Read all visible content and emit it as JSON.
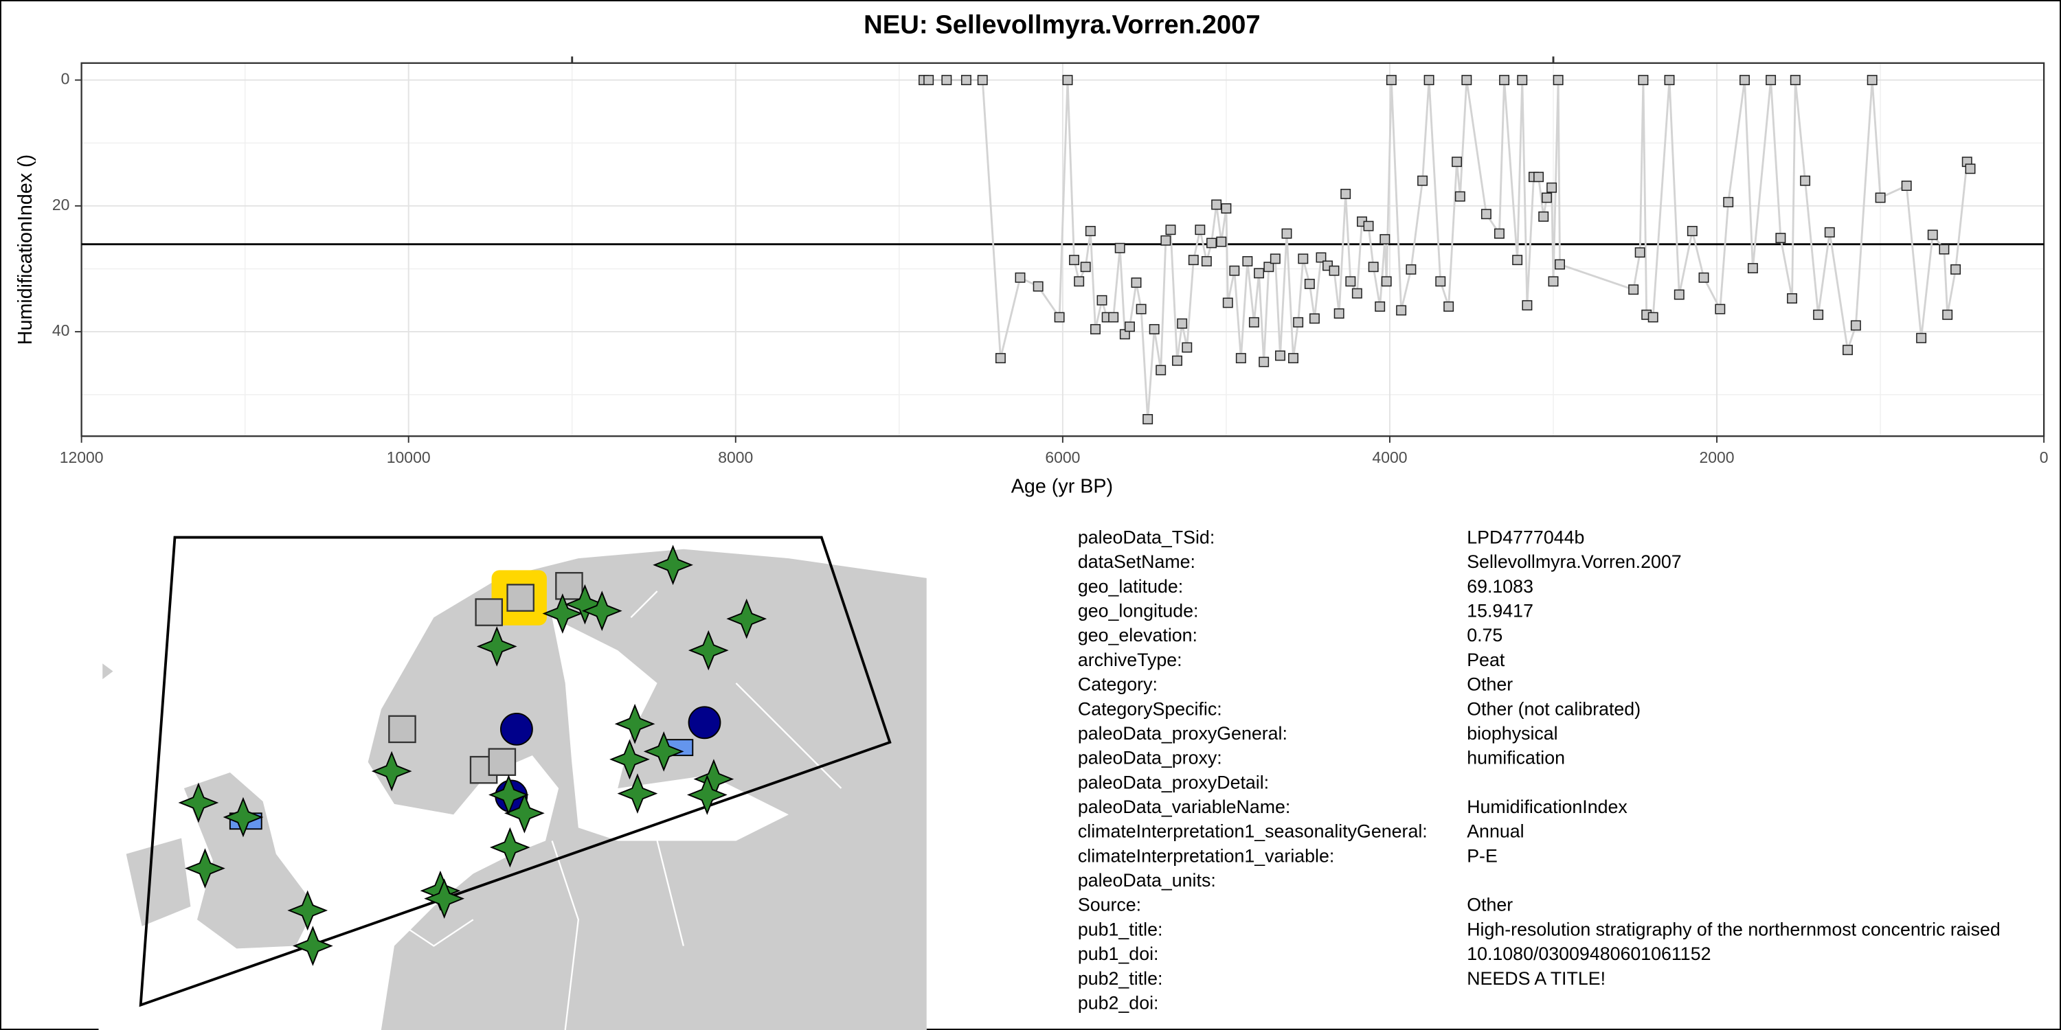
{
  "chart_data": {
    "type": "line",
    "title": "NEU: Sellevollmyra.Vorren.2007",
    "xlabel": "Age (yr BP)",
    "ylabel": "HumidificationIndex ()",
    "x": [
      6850,
      6820,
      6710,
      6590,
      6490,
      6380,
      6260,
      6150,
      6020,
      5970,
      5930,
      5900,
      5860,
      5830,
      5800,
      5760,
      5730,
      5690,
      5650,
      5620,
      5590,
      5550,
      5520,
      5480,
      5440,
      5400,
      5370,
      5340,
      5300,
      5270,
      5240,
      5200,
      5160,
      5120,
      5090,
      5060,
      5030,
      5000,
      4990,
      4950,
      4910,
      4870,
      4830,
      4800,
      4770,
      4740,
      4700,
      4670,
      4630,
      4590,
      4560,
      4530,
      4490,
      4460,
      4420,
      4380,
      4340,
      4310,
      4270,
      4240,
      4200,
      4170,
      4130,
      4100,
      4060,
      4030,
      4020,
      3990,
      3930,
      3870,
      3800,
      3760,
      3690,
      3640,
      3590,
      3570,
      3530,
      3410,
      3330,
      3300,
      3220,
      3190,
      3160,
      3120,
      3090,
      3060,
      3040,
      3010,
      3000,
      2970,
      2960,
      2510,
      2470,
      2450,
      2430,
      2390,
      2290,
      2230,
      2150,
      2080,
      1980,
      1930,
      1830,
      1780,
      1670,
      1610,
      1540,
      1520,
      1460,
      1380,
      1310,
      1200,
      1150,
      1050,
      1000,
      840,
      750,
      680,
      610,
      590,
      540,
      470,
      450
    ],
    "values": [
      0,
      0,
      0,
      0,
      0,
      44.2,
      31.4,
      32.8,
      37.7,
      0,
      28.6,
      32,
      29.7,
      24,
      39.6,
      35,
      37.7,
      37.7,
      26.7,
      40.4,
      39.2,
      32.2,
      36.4,
      53.9,
      39.6,
      46.1,
      25.5,
      23.8,
      44.6,
      38.7,
      42.5,
      28.6,
      23.8,
      28.8,
      25.9,
      19.8,
      25.7,
      20.4,
      35.4,
      30.3,
      44.2,
      28.8,
      38.5,
      30.7,
      44.8,
      29.7,
      28.4,
      43.8,
      24.4,
      44.2,
      38.5,
      28.4,
      32.4,
      37.9,
      28.2,
      29.5,
      30.3,
      37.1,
      18.1,
      32,
      33.9,
      22.5,
      23.2,
      29.7,
      36,
      25.3,
      32,
      0,
      36.6,
      30.1,
      16,
      0,
      32,
      36,
      13,
      18.5,
      0,
      21.3,
      24.4,
      0,
      28.6,
      0,
      35.8,
      15.4,
      15.4,
      21.7,
      18.7,
      17.1,
      32,
      0,
      29.3,
      33.3,
      27.4,
      0,
      37.3,
      37.7,
      0,
      34.1,
      24,
      31.4,
      36.4,
      19.4,
      0,
      29.9,
      0,
      25.1,
      34.7,
      0,
      16,
      37.3,
      24.2,
      42.9,
      39,
      0,
      18.7,
      16.8,
      41,
      24.6,
      26.9,
      37.3,
      30.1,
      13,
      14.1
    ],
    "color": "#d3d3d3",
    "marker_color": "#c8c8c8",
    "xlim": [
      12000,
      0
    ],
    "xticks": [
      0,
      2000,
      4000,
      6000,
      8000,
      10000,
      12000
    ],
    "xminor": [
      1000,
      3000,
      5000,
      7000,
      9000,
      11000
    ],
    "x2ticks": [
      9000,
      3000
    ],
    "ylim": [
      56.6,
      -2.7
    ],
    "yticks": [
      0,
      20,
      40
    ],
    "yminor": [
      10,
      30,
      50
    ],
    "hline": 26.1,
    "grid": true
  },
  "metadata": [
    {
      "key": "paleoData_TSid:",
      "value": "LPD4777044b"
    },
    {
      "key": "dataSetName:",
      "value": "Sellevollmyra.Vorren.2007"
    },
    {
      "key": "geo_latitude:",
      "value": "69.1083"
    },
    {
      "key": "geo_longitude:",
      "value": "15.9417"
    },
    {
      "key": "geo_elevation:",
      "value": "0.75"
    },
    {
      "key": "archiveType:",
      "value": "Peat"
    },
    {
      "key": "Category:",
      "value": "Other"
    },
    {
      "key": "CategorySpecific:",
      "value": "Other (not calibrated)"
    },
    {
      "key": "paleoData_proxyGeneral:",
      "value": "biophysical"
    },
    {
      "key": "paleoData_proxy:",
      "value": "humification"
    },
    {
      "key": "paleoData_proxyDetail:"
    },
    {
      "key": "paleoData_variableName:",
      "value": "HumidificationIndex"
    },
    {
      "key": "climateInterpretation1_seasonalityGeneral:",
      "value": "Annual"
    },
    {
      "key": "climateInterpretation1_variable:",
      "value": "P-E"
    },
    {
      "key": "paleoData_units:"
    },
    {
      "key": "Source:",
      "value": "Other"
    },
    {
      "key": "pub1_title:",
      "value": "High‑resolution stratigraphy of the northernmost concentric raised"
    },
    {
      "key": "pub1_doi:",
      "value": "10.1080/03009480601061152"
    },
    {
      "key": "pub2_title:",
      "value": "NEEDS A TITLE!"
    },
    {
      "key": "pub2_doi:"
    }
  ]
}
